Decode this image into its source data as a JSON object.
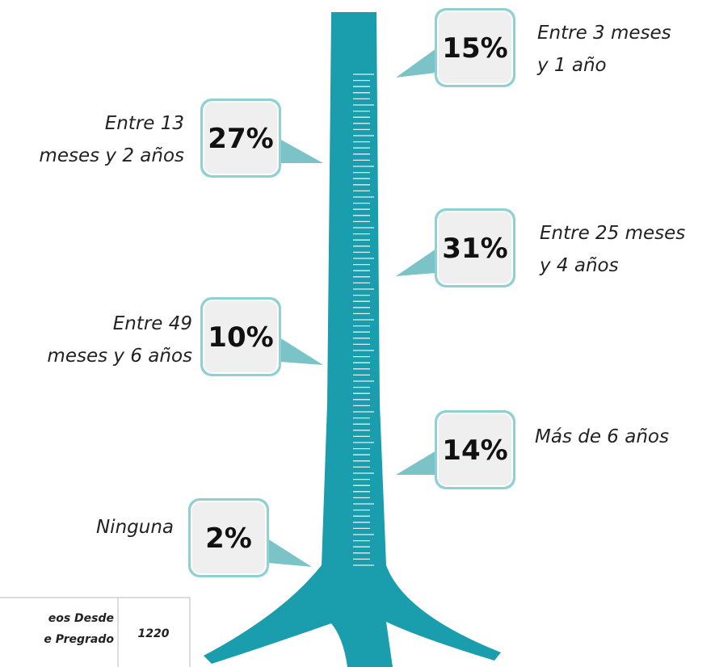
{
  "callouts": [
    {
      "value": "15%",
      "label": [
        "Entre 3 meses",
        "y 1 año"
      ]
    },
    {
      "value": "27%",
      "label": [
        "Entre 13",
        "meses y 2 años"
      ]
    },
    {
      "value": "31%",
      "label": [
        "Entre 25 meses",
        "y 4 años"
      ]
    },
    {
      "value": "10%",
      "label": [
        "Entre 49",
        "meses y 6 años"
      ]
    },
    {
      "value": "14%",
      "label": [
        "Más de 6 años"
      ]
    },
    {
      "value": "2%",
      "label": [
        "Ninguna"
      ]
    }
  ],
  "table": {
    "rows": [
      [
        [
          "eos Desde",
          "e Pregrado"
        ],
        "1220"
      ]
    ]
  }
}
